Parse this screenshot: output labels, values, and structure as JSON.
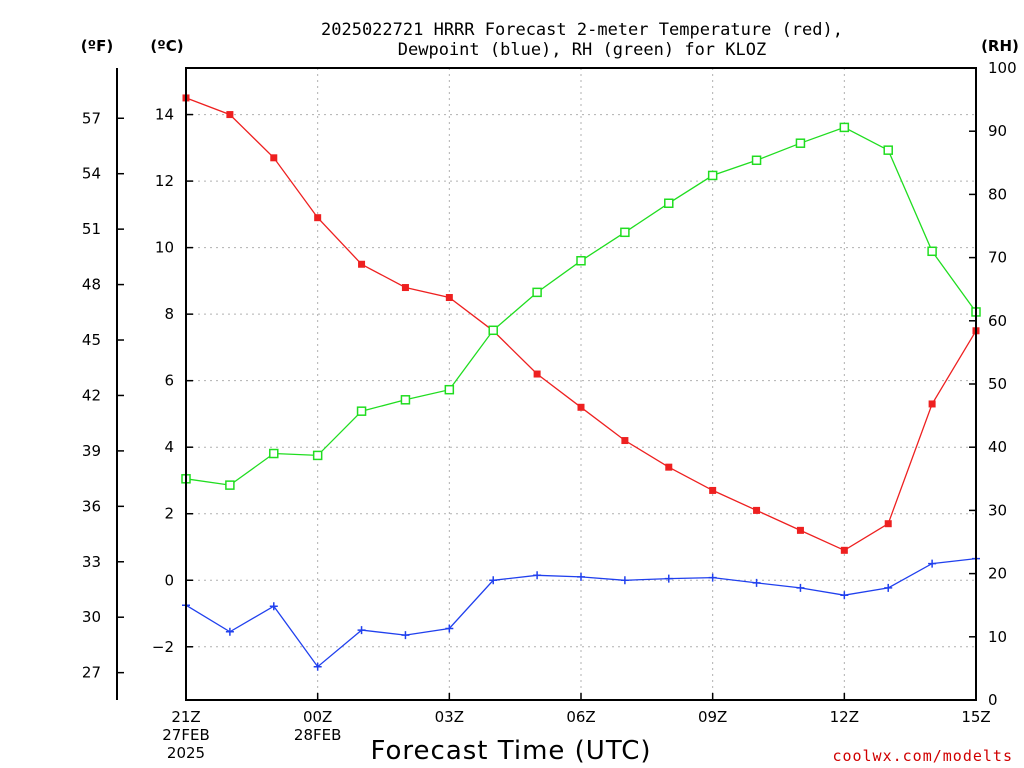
{
  "chart_data": {
    "type": "line",
    "title_line1": "2025022721 HRRR Forecast 2-meter Temperature (red),",
    "title_line2": "Dewpoint (blue), RH (green) for KLOZ",
    "xlabel": "Forecast Time (UTC)",
    "credit": "coolwx.com/modelts",
    "units": {
      "left_outer": "(ºF)",
      "left_inner": "(ºC)",
      "right": "(RH)"
    },
    "x": [
      "21Z",
      "22Z",
      "23Z",
      "00Z",
      "01Z",
      "02Z",
      "03Z",
      "04Z",
      "05Z",
      "06Z",
      "07Z",
      "08Z",
      "09Z",
      "10Z",
      "11Z",
      "12Z",
      "13Z",
      "14Z",
      "15Z"
    ],
    "x_tick_labels": [
      {
        "index": 0,
        "lines": [
          "21Z",
          "27FEB",
          "2025"
        ]
      },
      {
        "index": 3,
        "lines": [
          "00Z",
          "28FEB"
        ]
      },
      {
        "index": 6,
        "lines": [
          "03Z"
        ]
      },
      {
        "index": 9,
        "lines": [
          "06Z"
        ]
      },
      {
        "index": 12,
        "lines": [
          "09Z"
        ]
      },
      {
        "index": 15,
        "lines": [
          "12Z"
        ]
      },
      {
        "index": 18,
        "lines": [
          "15Z"
        ]
      }
    ],
    "ylim_c": [
      -3.6,
      15.4
    ],
    "yticks_c": [
      -2,
      0,
      2,
      4,
      6,
      8,
      10,
      12,
      14
    ],
    "yticks_c_labels": [
      "−2",
      "0",
      "2",
      "4",
      "6",
      "8",
      "10",
      "12",
      "14"
    ],
    "ylim_rh": [
      0,
      100
    ],
    "yticks_rh": [
      0,
      10,
      20,
      30,
      40,
      50,
      60,
      70,
      80,
      90,
      100
    ],
    "yticks_f": [
      27,
      30,
      33,
      36,
      39,
      42,
      45,
      48,
      51,
      54,
      57
    ],
    "grid": true,
    "series": [
      {
        "name": "Temperature",
        "axis": "c",
        "color": "#ee2020",
        "marker": "filled-square",
        "values": [
          14.5,
          14.0,
          12.7,
          10.9,
          9.5,
          8.8,
          8.5,
          7.5,
          6.2,
          5.2,
          4.2,
          3.4,
          2.7,
          2.1,
          1.5,
          0.9,
          1.7,
          5.3,
          7.5
        ]
      },
      {
        "name": "Dewpoint",
        "axis": "c",
        "color": "#2040ee",
        "marker": "plus",
        "values": [
          -0.75,
          -1.55,
          -0.78,
          -2.6,
          -1.5,
          -1.65,
          -1.45,
          0.0,
          0.15,
          0.1,
          0.0,
          0.05,
          0.08,
          -0.08,
          -0.23,
          -0.45,
          -0.23,
          0.5,
          0.65
        ]
      },
      {
        "name": "RH",
        "axis": "rh",
        "color": "#20dd20",
        "marker": "open-square",
        "values": [
          35,
          34,
          39,
          38.7,
          45.7,
          47.5,
          49.1,
          58.5,
          64.5,
          69.5,
          74,
          78.6,
          83,
          85.4,
          88.1,
          90.6,
          87,
          71,
          61.4
        ]
      }
    ]
  }
}
